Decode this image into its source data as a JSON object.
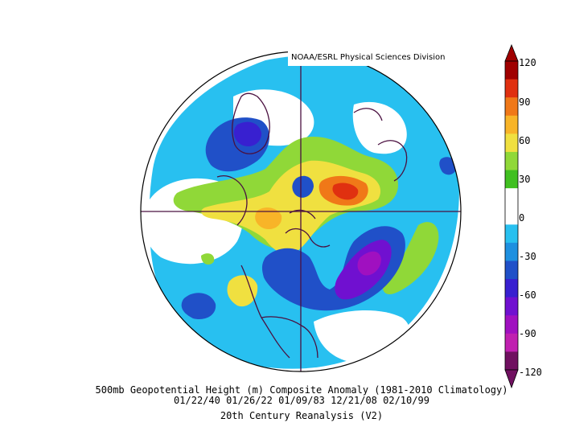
{
  "credit": "NOAA/ESRL Physical Sciences Division",
  "caption": {
    "line1": "500mb Geopotential Height (m) Composite Anomaly (1981-2010 Climatology)",
    "line2": "01/22/40 01/26/22 01/09/83 12/21/08 02/10/99",
    "line3": "20th Century Reanalysis (V2)"
  },
  "colorbar": {
    "ticks": [
      "120",
      "90",
      "60",
      "30",
      "0",
      "-30",
      "-60",
      "-90",
      "-120"
    ],
    "colors": [
      "#a00000",
      "#e03010",
      "#f07818",
      "#f8b428",
      "#f0e040",
      "#90d838",
      "#40c020",
      "#ffffff",
      "#ffffff",
      "#28c0f0",
      "#1e90e0",
      "#2050c8",
      "#3820d0",
      "#7010d0",
      "#a010c0",
      "#c020b0",
      "#701060"
    ]
  }
}
